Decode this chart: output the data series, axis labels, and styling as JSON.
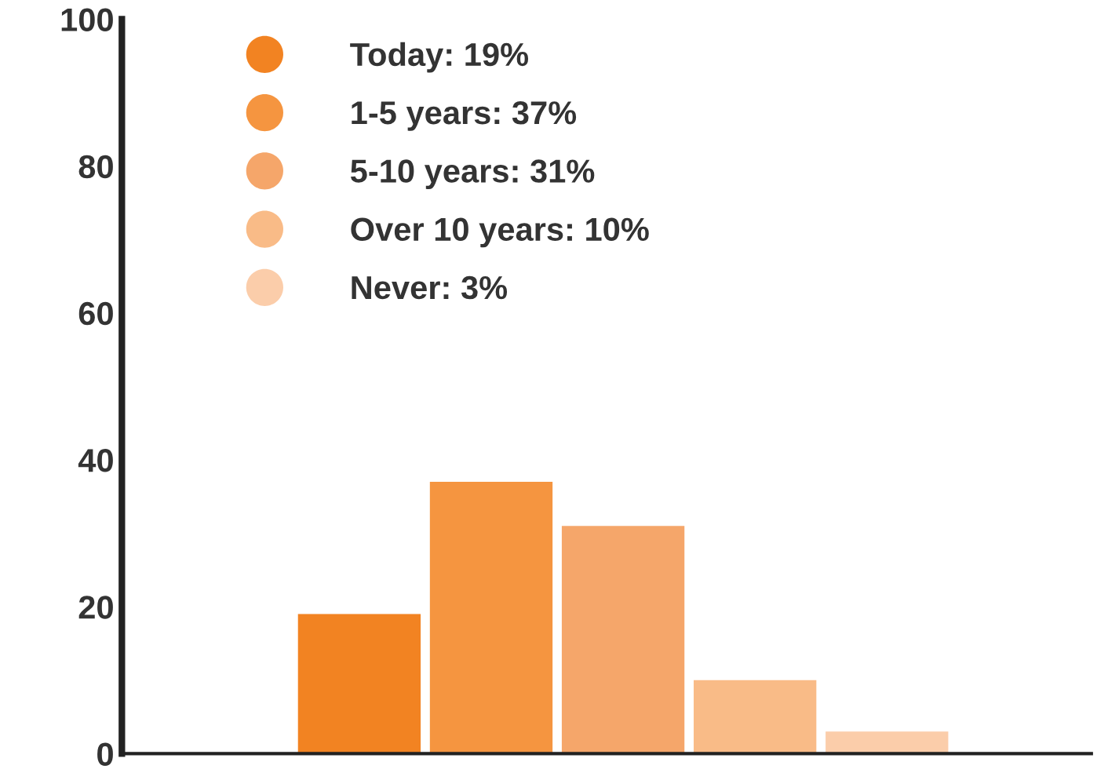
{
  "chart_data": {
    "type": "bar",
    "categories": [
      null,
      null,
      null,
      null,
      null
    ],
    "series": [
      {
        "name": "Today: 19%",
        "color": "#f28322",
        "values": [
          19,
          null,
          null,
          null,
          null
        ]
      },
      {
        "name": "1-5 years: 37%",
        "color": "#f59540",
        "values": [
          null,
          37,
          null,
          null,
          null
        ]
      },
      {
        "name": "5-10 years: 31%",
        "color": "#f5a66a",
        "values": [
          null,
          null,
          31,
          null,
          null
        ]
      },
      {
        "name": "Over 10 years: 10%",
        "color": "#f9bb87",
        "values": [
          null,
          null,
          null,
          10,
          null
        ]
      },
      {
        "name": "Never: 3%",
        "color": "#fbcdaa",
        "values": [
          null,
          null,
          null,
          null,
          3
        ]
      }
    ],
    "stacked": true,
    "ylim": [
      0,
      100
    ],
    "yticks": [
      0,
      20,
      40,
      60,
      80,
      100
    ],
    "tick_labels": "y",
    "grid": false,
    "legend": "top left"
  }
}
